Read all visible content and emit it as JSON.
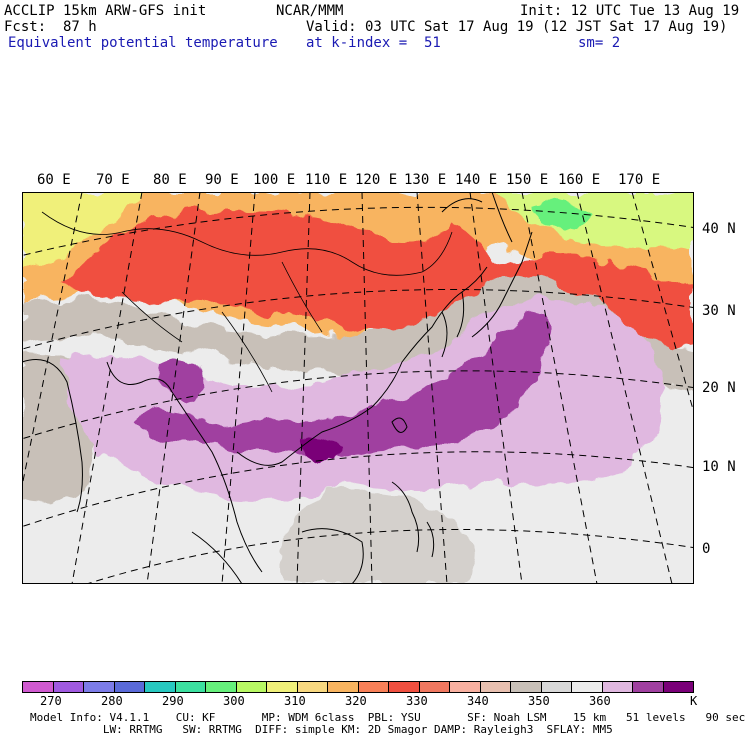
{
  "header": {
    "model": "ACCLIP 15km ARW-GFS init",
    "org": "NCAR/MMM",
    "init": "Init: 12 UTC Tue 13 Aug 19",
    "fcst": "Fcst:  87 h",
    "valid": "Valid: 03 UTC Sat 17 Aug 19 (12 JST Sat 17 Aug 19)",
    "field": "Equivalent potential temperature",
    "level": "at k-index =  51",
    "smooth": "sm= 2"
  },
  "map": {
    "longitude_labels": [
      "60 E",
      "70 E",
      "80 E",
      "90 E",
      "100 E",
      "110 E",
      "120 E",
      "130 E",
      "140 E",
      "150 E",
      "160 E",
      "170 E"
    ],
    "latitude_labels": [
      "40 N",
      "30 N",
      "20 N",
      "10 N",
      "0"
    ]
  },
  "colorbar": {
    "colors": [
      "#d05ad0",
      "#a05ae0",
      "#7c7ce8",
      "#5a6ad8",
      "#28c8c0",
      "#3ce0a0",
      "#66f07c",
      "#b8f864",
      "#f0f07a",
      "#f8d880",
      "#f8b460",
      "#f88058",
      "#f05040",
      "#f07860",
      "#f8b0a0",
      "#e8c0b0",
      "#c8c0b8",
      "#d8d8d8",
      "#ececec",
      "#e0b8e0",
      "#a040a0",
      "#7a0078"
    ],
    "tick_labels": [
      "270",
      "280",
      "290",
      "300",
      "310",
      "320",
      "330",
      "340",
      "350",
      "360"
    ],
    "unit": "K"
  },
  "footer": {
    "line1": "Model Info: V4.1.1    CU: KF       MP: WDM 6class  PBL: YSU       SF: Noah LSM    15 km   51 levels   90 sec",
    "line2": "           LW: RRTMG   SW: RRTMG  DIFF: simple KM: 2D Smagor DAMP: Rayleigh3  SFLAY: MM5"
  }
}
